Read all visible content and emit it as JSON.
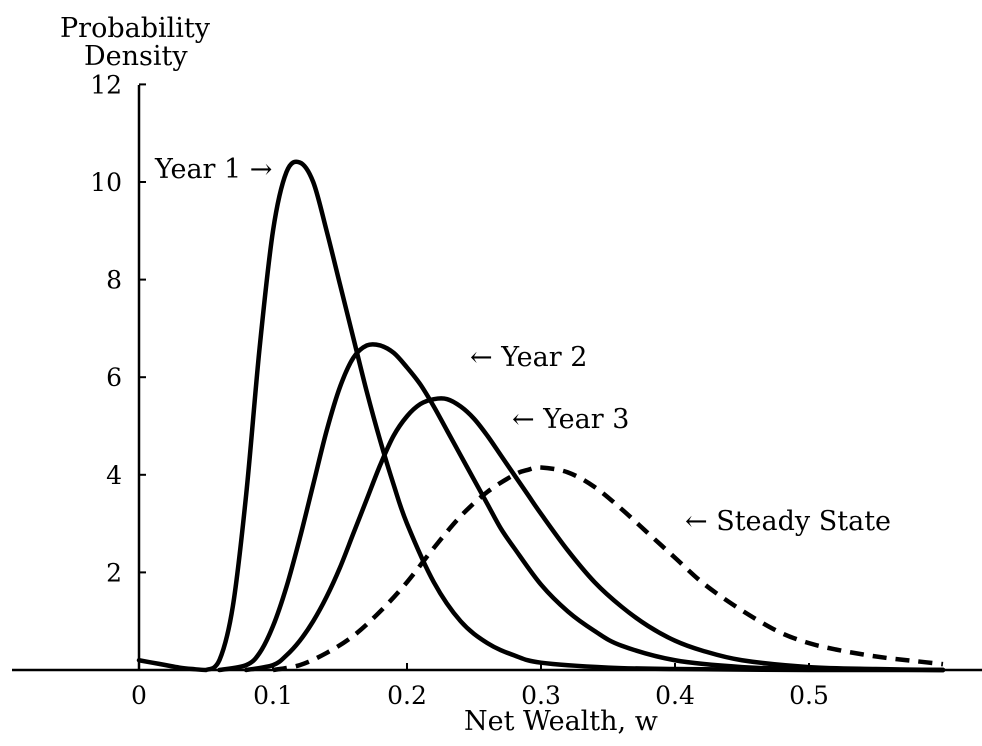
{
  "chart_data": {
    "type": "line",
    "title": "",
    "xlabel": "Net Wealth, w",
    "ylabel_line1": "Probability",
    "ylabel_line2": "Density",
    "xlim": [
      -0.1,
      0.6
    ],
    "ylim": [
      0,
      12
    ],
    "x_ticks": [
      0,
      0.1,
      0.2,
      0.3,
      0.4,
      0.5
    ],
    "x_tick_labels": [
      "0",
      "0.1",
      "0.2",
      "0.3",
      "0.4",
      "0.5"
    ],
    "y_ticks": [
      2,
      4,
      6,
      8,
      10,
      12
    ],
    "y_tick_labels": [
      "2",
      "4",
      "6",
      "8",
      "10",
      "12"
    ],
    "grid": false,
    "legend": "none",
    "series": [
      {
        "name": "Year 1",
        "style": "solid",
        "x": [
          0,
          0.01,
          0.02,
          0.03,
          0.04,
          0.05,
          0.06,
          0.07,
          0.08,
          0.09,
          0.1,
          0.11,
          0.12,
          0.13,
          0.14,
          0.15,
          0.16,
          0.17,
          0.18,
          0.19,
          0.2,
          0.22,
          0.24,
          0.26,
          0.28,
          0.3,
          0.35,
          0.4,
          0.5,
          0.6
        ],
        "y": [
          0.2,
          0.15,
          0.1,
          0.05,
          0.02,
          0.0,
          0.2,
          1.3,
          3.6,
          6.6,
          9.0,
          10.2,
          10.4,
          10.0,
          9.0,
          7.9,
          6.8,
          5.7,
          4.7,
          3.8,
          3.0,
          1.8,
          1.0,
          0.55,
          0.3,
          0.15,
          0.05,
          0.02,
          0.0,
          0.0
        ]
      },
      {
        "name": "Year 2",
        "style": "solid",
        "x": [
          0.06,
          0.08,
          0.09,
          0.1,
          0.11,
          0.12,
          0.13,
          0.14,
          0.15,
          0.16,
          0.17,
          0.18,
          0.19,
          0.2,
          0.21,
          0.22,
          0.23,
          0.24,
          0.25,
          0.26,
          0.27,
          0.28,
          0.3,
          0.32,
          0.34,
          0.36,
          0.4,
          0.45,
          0.5,
          0.6
        ],
        "y": [
          0.0,
          0.1,
          0.35,
          0.9,
          1.7,
          2.7,
          3.8,
          4.9,
          5.8,
          6.4,
          6.65,
          6.65,
          6.5,
          6.2,
          5.85,
          5.4,
          4.9,
          4.4,
          3.9,
          3.4,
          2.9,
          2.5,
          1.75,
          1.2,
          0.8,
          0.5,
          0.2,
          0.06,
          0.02,
          0.0
        ]
      },
      {
        "name": "Year 3",
        "style": "solid",
        "x": [
          0.08,
          0.1,
          0.11,
          0.12,
          0.13,
          0.14,
          0.15,
          0.16,
          0.17,
          0.18,
          0.19,
          0.2,
          0.21,
          0.22,
          0.23,
          0.24,
          0.25,
          0.26,
          0.27,
          0.28,
          0.29,
          0.3,
          0.32,
          0.34,
          0.36,
          0.38,
          0.4,
          0.42,
          0.45,
          0.5,
          0.55,
          0.6
        ],
        "y": [
          0.0,
          0.1,
          0.3,
          0.6,
          1.0,
          1.5,
          2.1,
          2.8,
          3.5,
          4.2,
          4.8,
          5.2,
          5.45,
          5.55,
          5.55,
          5.4,
          5.15,
          4.8,
          4.4,
          4.0,
          3.6,
          3.2,
          2.45,
          1.8,
          1.3,
          0.9,
          0.6,
          0.4,
          0.2,
          0.06,
          0.02,
          0.0
        ]
      },
      {
        "name": "Steady State",
        "style": "dashed",
        "x": [
          0.1,
          0.12,
          0.14,
          0.16,
          0.18,
          0.2,
          0.22,
          0.24,
          0.26,
          0.28,
          0.29,
          0.3,
          0.32,
          0.34,
          0.36,
          0.38,
          0.4,
          0.42,
          0.44,
          0.46,
          0.48,
          0.5,
          0.52,
          0.54,
          0.56,
          0.58,
          0.6
        ],
        "y": [
          0.0,
          0.1,
          0.35,
          0.7,
          1.2,
          1.8,
          2.5,
          3.15,
          3.65,
          4.0,
          4.1,
          4.15,
          4.05,
          3.75,
          3.3,
          2.8,
          2.3,
          1.8,
          1.4,
          1.05,
          0.75,
          0.55,
          0.42,
          0.32,
          0.24,
          0.18,
          0.12
        ]
      }
    ],
    "annotations": [
      {
        "text": "Year 1 →"
      },
      {
        "text": "← Year 2"
      },
      {
        "text": "← Year 3"
      },
      {
        "text": "← Steady State"
      }
    ]
  }
}
